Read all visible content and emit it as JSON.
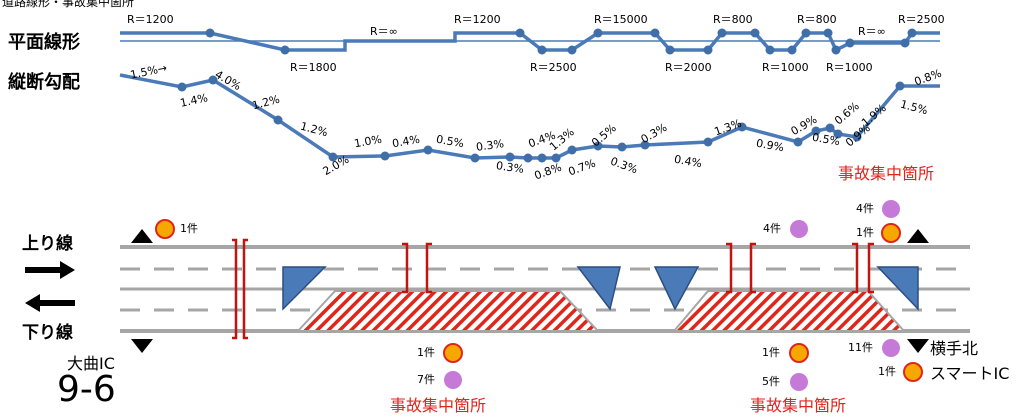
{
  "header": {
    "title": "道路線形・事故集中箇所"
  },
  "rows": {
    "plane_label": "平面線形",
    "vertical_label": "縦断勾配"
  },
  "directions": {
    "up": "上り線",
    "down": "下り線"
  },
  "interchanges": {
    "left_name": "大曲IC",
    "left_code": "9-6",
    "right_name_line1": "横手北",
    "right_name_line2": "スマートIC"
  },
  "accident_section_label": "事故集中箇所",
  "accident_sections": [
    {
      "label": "事故集中箇所",
      "position": "below-left"
    },
    {
      "label": "事故集中箇所",
      "position": "below-right"
    },
    {
      "label": "事故集中箇所",
      "position": "above-right"
    }
  ],
  "plane_curve_labels": [
    "R＝1200",
    "R＝1800",
    "R＝∞",
    "R＝1200",
    "R＝2500",
    "R＝15000",
    "R＝2000",
    "R＝800",
    "R＝1000",
    "R＝800",
    "R＝1000",
    "R＝∞",
    "R＝2500"
  ],
  "gradient_labels": [
    "1.5%→",
    "1.4%",
    "4.0%",
    "1.2%",
    "1.2%",
    "2.0%",
    "1.0%",
    "0.4%",
    "0.5%",
    "0.3%",
    "0.3%",
    "0.4%",
    "0.8%",
    "1.3%",
    "0.7%",
    "0.5%",
    "0.3%",
    "0.3%",
    "0.4%",
    "1.3%",
    "0.9%",
    "0.9%",
    "0.5%",
    "0.6%",
    "0.9%",
    "1.9%",
    "1.5%",
    "0.8%"
  ],
  "accident_counts": [
    {
      "text": "1件",
      "kind": "orange",
      "lane": "up"
    },
    {
      "text": "4件",
      "kind": "purple",
      "lane": "up"
    },
    {
      "text": "4件",
      "kind": "purple",
      "lane": "up"
    },
    {
      "text": "1件",
      "kind": "orange",
      "lane": "up"
    },
    {
      "text": "1件",
      "kind": "orange",
      "lane": "down"
    },
    {
      "text": "7件",
      "kind": "purple",
      "lane": "down"
    },
    {
      "text": "1件",
      "kind": "orange",
      "lane": "down"
    },
    {
      "text": "5件",
      "kind": "purple",
      "lane": "down"
    },
    {
      "text": "11件",
      "kind": "purple",
      "lane": "down"
    },
    {
      "text": "1件",
      "kind": "orange",
      "lane": "down"
    }
  ],
  "colors": {
    "alignment_line": "#4a7ab8",
    "alignment_point": "#3f6ea8",
    "road_line": "#a6a6a6",
    "accident_red": "#e0261b",
    "bracket_red": "#c0140c",
    "ramp_blue": "#4a7ab8",
    "orange_fill": "#f7a800",
    "orange_stroke": "#e0261b",
    "purple_fill": "#c57ad8"
  },
  "icons": [
    "right-arrow-icon",
    "left-arrow-icon",
    "up-triangle-icon",
    "down-triangle-icon"
  ]
}
